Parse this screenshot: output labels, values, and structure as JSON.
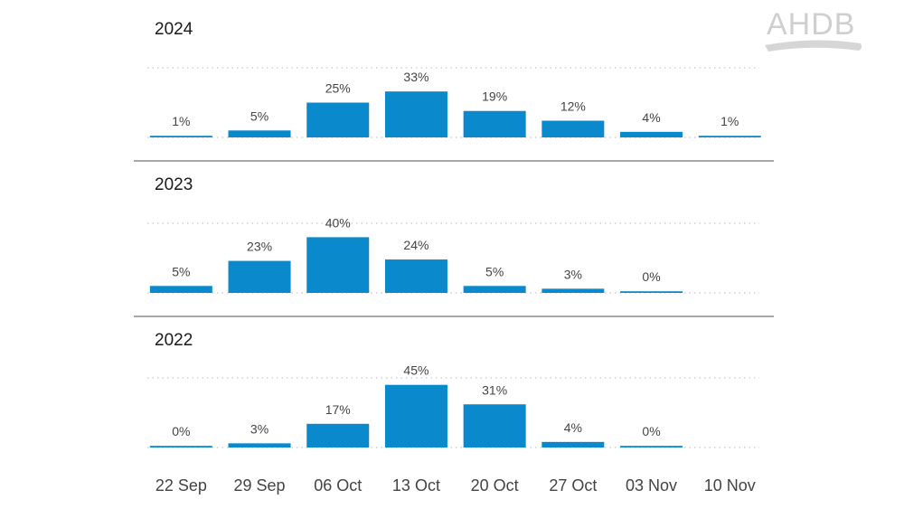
{
  "brand": {
    "logo_text": "AHDB"
  },
  "chart_data": {
    "type": "bar",
    "categories": [
      "22 Sep",
      "29 Sep",
      "06 Oct",
      "13 Oct",
      "20 Oct",
      "27 Oct",
      "03 Nov",
      "10 Nov"
    ],
    "unit": "%",
    "ylim": [
      0,
      50
    ],
    "grid": true,
    "bar_color": "#0a8acd",
    "panels": [
      {
        "title": "2024",
        "values": [
          1,
          5,
          25,
          33,
          19,
          12,
          4,
          1
        ]
      },
      {
        "title": "2023",
        "values": [
          5,
          23,
          40,
          24,
          5,
          3,
          0,
          null
        ]
      },
      {
        "title": "2022",
        "values": [
          0,
          3,
          17,
          45,
          31,
          4,
          0,
          null
        ]
      }
    ]
  }
}
